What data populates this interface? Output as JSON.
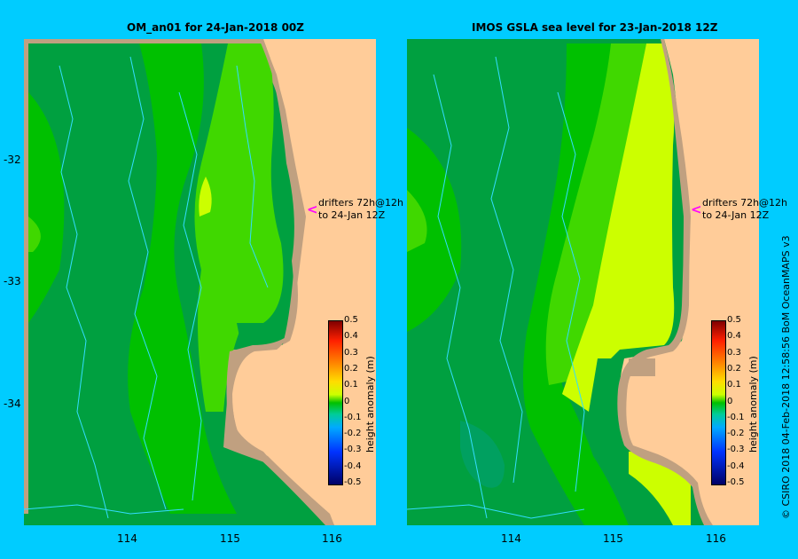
{
  "left_panel": {
    "title": "OM_an01  for 24-Jan-2018 00Z",
    "drifter_line1": "drifters 72h@12h",
    "drifter_line2": "to 24-Jan 12Z"
  },
  "right_panel": {
    "title": "IMOS GSLA sea level  for 23-Jan-2018 12Z",
    "drifter_line1": "drifters 72h@12h",
    "drifter_line2": "to 24-Jan 12Z"
  },
  "axes": {
    "latitude_labels": [
      "-32",
      "-33",
      "-34"
    ],
    "longitude_labels": [
      "114",
      "115",
      "116"
    ]
  },
  "colorbar": {
    "label": "height anomaly (m)",
    "ticks": [
      "0.5",
      "0.4",
      "0.3",
      "0.2",
      "0.1",
      "0",
      "-0.1",
      "-0.2",
      "-0.3",
      "-0.4",
      "-0.5"
    ]
  },
  "credit": "© CSIRO 2018   04-Feb-2018 12:58:56 BoM OceanMAPS v3",
  "colors": {
    "background": "#00CCFF",
    "land": "#FFCC99",
    "coast_shelf": "#C0A080",
    "dark_green": "#00A040",
    "mid_green": "#00C000",
    "light_green": "#40D800",
    "yellow_green": "#CCFF00",
    "drifter_track": "#33DDFF",
    "arrow": "#FF00FF"
  }
}
